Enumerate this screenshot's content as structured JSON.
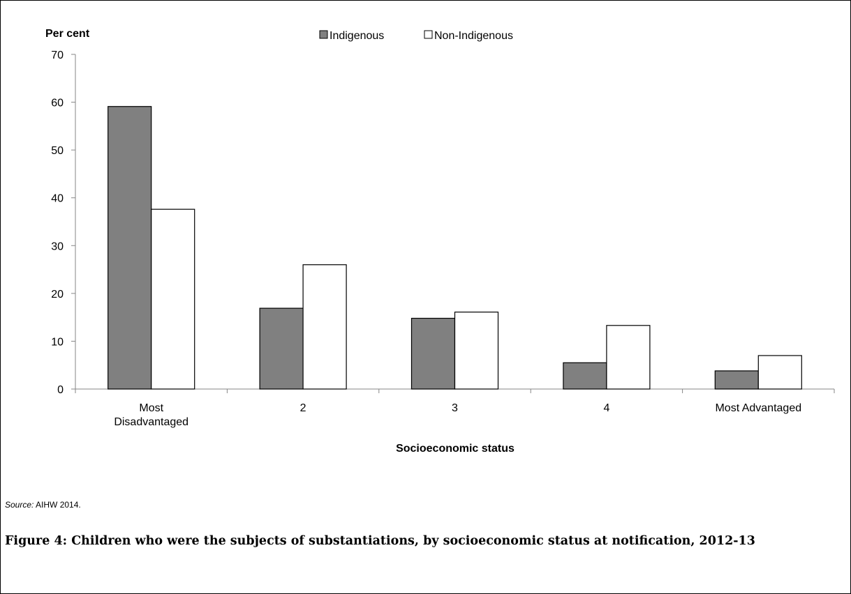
{
  "chart_data": {
    "type": "bar",
    "title": "",
    "ylabel": "Per cent",
    "xlabel": "Socioeconomic status",
    "ylim": [
      0,
      70
    ],
    "yticks": [
      0,
      10,
      20,
      30,
      40,
      50,
      60,
      70
    ],
    "categories": [
      [
        "Most",
        "Disadvantaged"
      ],
      [
        "2"
      ],
      [
        "3"
      ],
      [
        "4"
      ],
      [
        "Most Advantaged"
      ]
    ],
    "series": [
      {
        "name": "Indigenous",
        "color": "#808080",
        "values": [
          59.1,
          16.9,
          14.8,
          5.5,
          3.8
        ]
      },
      {
        "name": "Non-Indigenous",
        "color": "#ffffff",
        "values": [
          37.6,
          26.0,
          16.1,
          13.3,
          7.0
        ]
      }
    ],
    "legend": "top-center",
    "grid": false
  },
  "source": {
    "label": "Source:",
    "text": "AIHW 2014."
  },
  "caption": "Figure 4: Children who were the subjects of substantiations, by socioeconomic status at notification, 2012-13"
}
